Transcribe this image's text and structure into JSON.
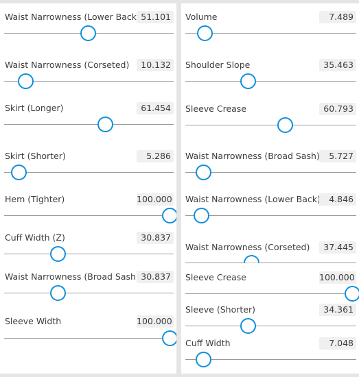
{
  "colors": {
    "background": "#e5e5e5",
    "panel": "#ffffff",
    "text": "#3c3c3c",
    "value_box": "#f0f0f0",
    "track": "#9a9a9a",
    "thumb_border": "#0f8fdc"
  },
  "left_panel": {
    "sliders": [
      {
        "label": "Waist Narrowness (Lower Back)",
        "value": "51.101",
        "level": 0.51
      },
      {
        "label": "Waist Narrowness (Corseted)",
        "value": "10.132",
        "level": 0.14
      },
      {
        "label": "Skirt (Longer)",
        "value": "61.454",
        "level": 0.61
      },
      {
        "label": "Skirt (Shorter)",
        "value": "5.286",
        "level": 0.1
      },
      {
        "label": "Hem (Tighter)",
        "value": "100.000",
        "level": 1.0
      },
      {
        "label": "Cuff Width (Z)",
        "value": "30.837",
        "level": 0.33
      },
      {
        "label": "Waist Narrowness (Broad Sash)",
        "value": "30.837",
        "level": 0.33
      },
      {
        "label": "Sleeve Width",
        "value": "100.000",
        "level": 1.0
      }
    ]
  },
  "right_panel": {
    "sliders": [
      {
        "label": "Volume",
        "value": "7.489",
        "level": 0.13
      },
      {
        "label": "Shoulder Slope",
        "value": "35.463",
        "level": 0.38
      },
      {
        "label": "Sleeve Crease",
        "value": "60.793",
        "level": 0.6
      },
      {
        "label": "Waist Narrowness (Broad Sash)",
        "value": "5.727",
        "level": 0.12
      },
      {
        "label": "Waist Narrowness (Lower Back)",
        "value": "4.846",
        "level": 0.11
      },
      {
        "label": "Waist Narrowness (Corseted)",
        "value": "37.445",
        "level": 0.4
      },
      {
        "label": "Sleeve Crease",
        "value": "100.000",
        "level": 1.0
      },
      {
        "label": "Sleeve (Shorter)",
        "value": "34.361",
        "level": 0.38
      },
      {
        "label": "Cuff Width",
        "value": "7.048",
        "level": 0.12
      }
    ]
  }
}
